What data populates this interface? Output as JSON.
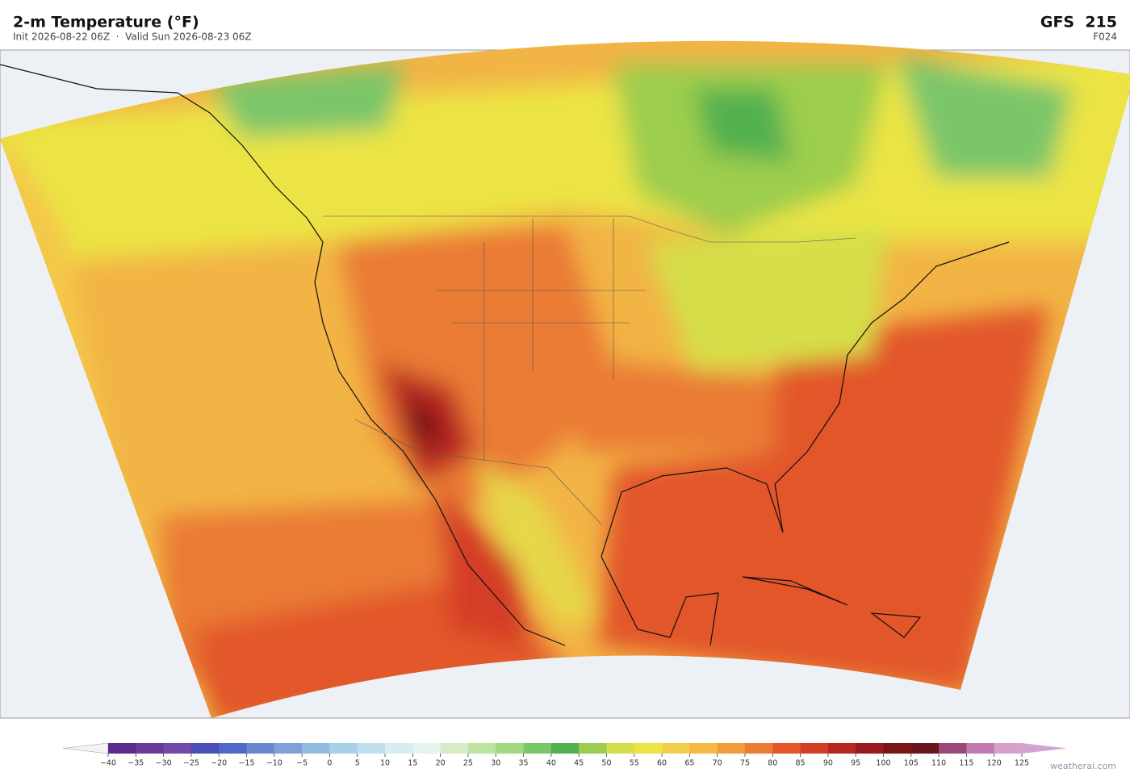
{
  "header": {
    "title": "2-m Temperature  (°F)",
    "subtitle": "Init 2026-08-22 06Z  ·  Valid Sun 2026-08-23 06Z",
    "model": "GFS  215",
    "forecast_hour": "F024"
  },
  "colorbar": {
    "ticks": [
      {
        "value": -40,
        "label": "−40"
      },
      {
        "value": -35,
        "label": "−35"
      },
      {
        "value": -30,
        "label": "−30"
      },
      {
        "value": -25,
        "label": "−25"
      },
      {
        "value": -20,
        "label": "−20"
      },
      {
        "value": -15,
        "label": "−15"
      },
      {
        "value": -10,
        "label": "−10"
      },
      {
        "value": -5,
        "label": "−5"
      },
      0,
      5,
      10,
      15,
      20,
      25,
      30,
      35,
      40,
      45,
      50,
      55,
      60,
      65,
      70,
      75,
      80,
      85,
      90,
      95,
      100,
      105,
      110,
      115,
      120,
      125
    ],
    "colors": [
      "#5b2a8c",
      "#6a3a9a",
      "#7248a8",
      "#4a4fb8",
      "#5068c8",
      "#6a88d0",
      "#80a0d8",
      "#90bde0",
      "#a8d0e8",
      "#c0e0f0",
      "#d6eef2",
      "#e6f4f0",
      "#d6ecc8",
      "#bde3a0",
      "#a2d880",
      "#7cc66a",
      "#52b050",
      "#9ccd4e",
      "#d6df4a",
      "#ece444",
      "#f4d04a",
      "#f4b845",
      "#f09c3c",
      "#ea7c34",
      "#e2562a",
      "#d43c26",
      "#b82622",
      "#981a1e",
      "#7a1418",
      "#6a1620",
      "#9a4a78",
      "#c07ab0",
      "#d8a0cc"
    ],
    "extend_low_color": "#f4f4f4",
    "extend_high_color": "#d4a4d0"
  },
  "footer": {
    "credit": "weatherai.com"
  }
}
